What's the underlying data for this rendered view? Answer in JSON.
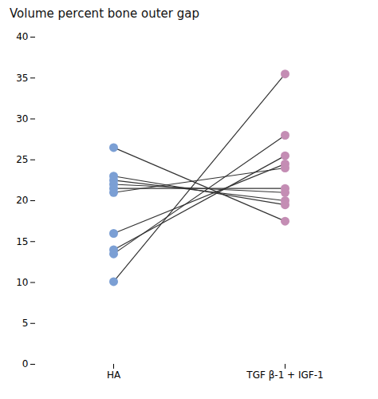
{
  "chart_data": {
    "type": "slope",
    "title": "Volume percent bone outer gap",
    "categories": [
      "HA",
      "TGF β-1 + IGF-1"
    ],
    "values": [
      [
        10.1,
        35.5
      ],
      [
        13.5,
        28.0
      ],
      [
        14.0,
        25.5
      ],
      [
        16.0,
        24.5
      ],
      [
        21.0,
        24.0
      ],
      [
        21.5,
        21.5
      ],
      [
        22.0,
        21.0
      ],
      [
        22.5,
        20.0
      ],
      [
        23.0,
        19.5
      ],
      [
        26.5,
        17.5
      ]
    ],
    "colors": [
      "#7b9fd4",
      "#c48db4"
    ],
    "color": "#333333",
    "ylim": [
      0,
      40
    ],
    "yticks": [
      0,
      5,
      10,
      15,
      20,
      25,
      30,
      35,
      40
    ],
    "grid": false
  }
}
